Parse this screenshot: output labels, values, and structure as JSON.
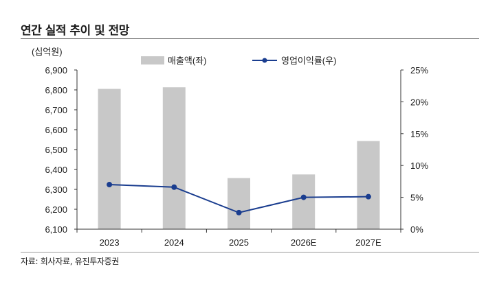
{
  "title": "연간 실적 추이 및 전망",
  "source": "자료: 회사자료, 유진투자증권",
  "chart_data": {
    "type": "bar",
    "categories": [
      "2023",
      "2024",
      "2025",
      "2026E",
      "2027E"
    ],
    "unit_label": "(십억원)",
    "series": [
      {
        "name": "매출액(좌)",
        "type": "bar",
        "axis": "left",
        "color": "#c8c8c8",
        "values": [
          6805,
          6813,
          6357,
          6375,
          6543
        ]
      },
      {
        "name": "영업이익률(우)",
        "type": "line",
        "axis": "right",
        "color": "#1a3d8f",
        "values": [
          7.0,
          6.6,
          2.6,
          5.0,
          5.1
        ]
      }
    ],
    "y_left": {
      "min": 6100,
      "max": 6900,
      "ticks": [
        6100,
        6200,
        6300,
        6400,
        6500,
        6600,
        6700,
        6800,
        6900
      ],
      "tick_labels": [
        "6,100",
        "6,200",
        "6,300",
        "6,400",
        "6,500",
        "6,600",
        "6,700",
        "6,800",
        "6,900"
      ]
    },
    "y_right": {
      "min": 0,
      "max": 25,
      "ticks": [
        0,
        5,
        10,
        15,
        20,
        25
      ],
      "tick_labels": [
        "0%",
        "5%",
        "10%",
        "15%",
        "20%",
        "25%"
      ]
    },
    "legend_position": "top",
    "grid": false
  }
}
